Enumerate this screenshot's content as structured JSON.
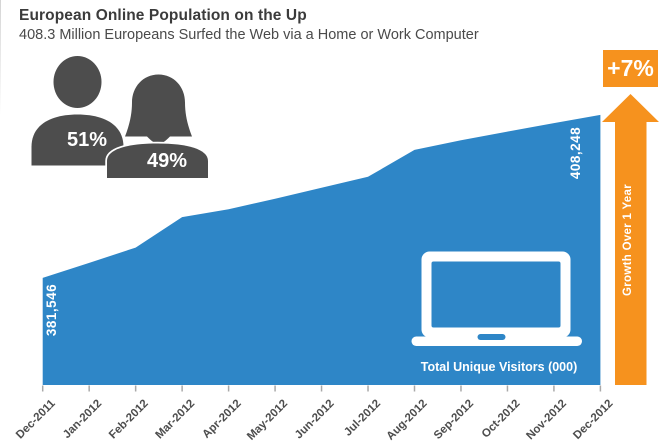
{
  "header": {
    "title": "European Online Population on the Up",
    "subtitle": "408.3 Million Europeans Surfed the Web via a Home or Work Computer"
  },
  "demographics": {
    "male_share": "51%",
    "female_share": "49%",
    "male_icon": "male-person-silhouette",
    "female_icon": "female-person-silhouette"
  },
  "growth": {
    "badge": "+7%",
    "arrow_label": "Growth Over 1 Year",
    "arrow_icon": "up-arrow"
  },
  "chart_data": {
    "type": "area",
    "title": "European Online Population on the Up",
    "series_label": "Total Unique Visitors (000)",
    "categories": [
      "Dec-2011",
      "Jan-2012",
      "Feb-2012",
      "Mar-2012",
      "Apr-2012",
      "May-2012",
      "Jun-2012",
      "Jul-2012",
      "Aug-2012",
      "Sep-2012",
      "Oct-2012",
      "Nov-2012",
      "Dec-2012"
    ],
    "values": [
      381546,
      384000,
      386500,
      391500,
      392800,
      394500,
      396300,
      398100,
      402500,
      404100,
      405500,
      406900,
      408248
    ],
    "start_label": "381,546",
    "end_label": "408,248",
    "xlabel": "",
    "ylabel": "",
    "ylim": [
      364000,
      411500
    ],
    "grid": false,
    "legend": "none",
    "laptop_icon": "laptop-icon"
  },
  "colors": {
    "area_blue": "#2E86C7",
    "accent_orange": "#F6921E",
    "icon_gray": "#4D4D4D",
    "title_text": "#3B3B3B",
    "axis_text": "#4D4D4D"
  }
}
